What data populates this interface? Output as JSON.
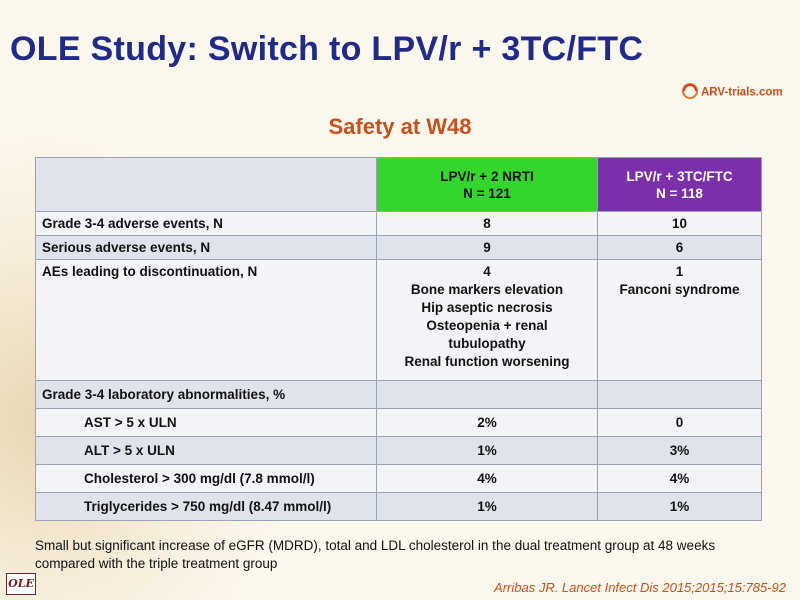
{
  "slide": {
    "title": "OLE Study: Switch to LPV/r + 3TC/FTC",
    "subtitle": "Safety at W48",
    "logo_text": "ARV-trials.com",
    "badge": "OLE",
    "footnote": "Small but significant increase of eGFR (MDRD), total and LDL cholesterol in the dual treatment group at 48 weeks compared with the triple treatment group",
    "citation": "Arribas JR. Lancet Infect Dis 2015;2015;15:785-92"
  },
  "table": {
    "headers": [
      {
        "line1": "LPV/r + 2 NRTI",
        "line2": "N = 121"
      },
      {
        "line1": "LPV/r + 3TC/FTC",
        "line2": "N = 118"
      }
    ],
    "rows": {
      "grade34_ae": {
        "label": "Grade 3-4 adverse events, N",
        "col1": "8",
        "col2": "10"
      },
      "serious_ae": {
        "label": "Serious adverse events, N",
        "col1": "9",
        "col2": "6"
      },
      "ae_disc": {
        "label": "AEs leading to discontinuation, N",
        "col1": [
          "4",
          "Bone markers elevation",
          "Hip aseptic necrosis",
          "Osteopenia + renal",
          "tubulopathy",
          "Renal function worsening"
        ],
        "col2": [
          "1",
          "Fanconi syndrome"
        ]
      },
      "grade34_lab": {
        "label": "Grade 3-4 laboratory abnormalities, %"
      },
      "ast": {
        "label": "AST > 5 x ULN",
        "col1": "2%",
        "col2": "0"
      },
      "alt": {
        "label": "ALT > 5 x ULN",
        "col1": "1%",
        "col2": "3%"
      },
      "cholesterol": {
        "label": "Cholesterol > 300 mg/dl (7.8 mmol/l)",
        "col1": "4%",
        "col2": "4%"
      },
      "triglycerides": {
        "label": "Triglycerides > 750 mg/dl (8.47 mmol/l)",
        "col1": "1%",
        "col2": "1%"
      }
    }
  },
  "colors": {
    "title": "#1f2a8a",
    "subtitle": "#c8501a",
    "header_lpv_2nrti": "#33d62a",
    "header_lpv_3tc": "#7b2fa8"
  }
}
